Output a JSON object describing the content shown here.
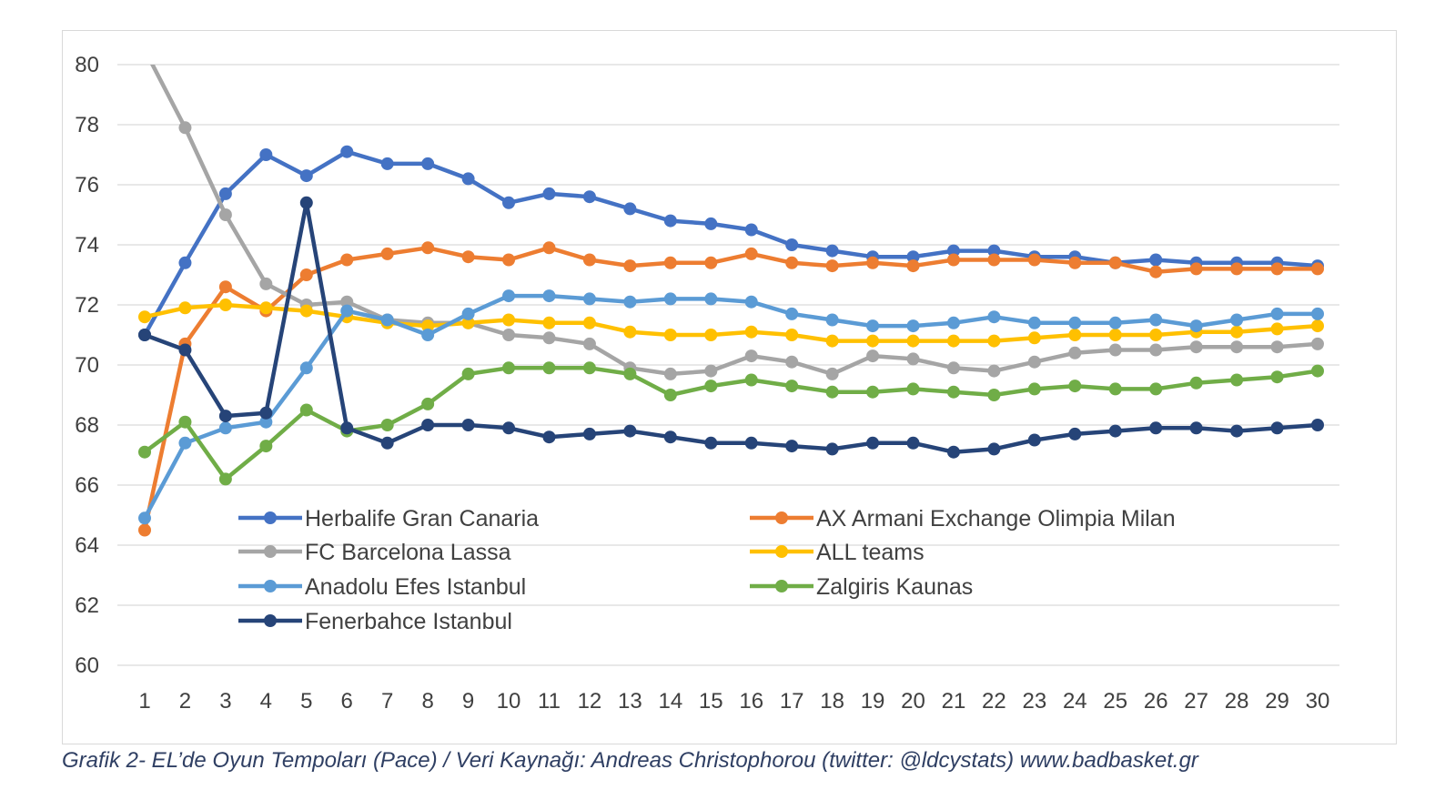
{
  "chart_data": {
    "type": "line",
    "title": "",
    "xlabel": "",
    "ylabel": "",
    "ylim": [
      60,
      80
    ],
    "y_ticks": [
      "60",
      "62",
      "64",
      "66",
      "68",
      "70",
      "72",
      "74",
      "76",
      "78",
      "80"
    ],
    "x": [
      "1",
      "2",
      "3",
      "4",
      "5",
      "6",
      "7",
      "8",
      "9",
      "10",
      "11",
      "12",
      "13",
      "14",
      "15",
      "16",
      "17",
      "18",
      "19",
      "20",
      "21",
      "22",
      "23",
      "24",
      "25",
      "26",
      "27",
      "28",
      "29",
      "30"
    ],
    "grid": "horizontal",
    "legend": "inside-bottom-left",
    "series": [
      {
        "name": "Herbalife Gran Canaria",
        "color": "#4472c4",
        "values": [
          71.0,
          73.4,
          75.7,
          77.0,
          76.3,
          77.1,
          76.7,
          76.7,
          76.2,
          75.4,
          75.7,
          75.6,
          75.2,
          74.8,
          74.7,
          74.5,
          74.0,
          73.8,
          73.6,
          73.6,
          73.8,
          73.8,
          73.6,
          73.6,
          73.4,
          73.5,
          73.4,
          73.4,
          73.4,
          73.3
        ]
      },
      {
        "name": "AX Armani Exchange Olimpia Milan",
        "color": "#ed7d31",
        "values": [
          64.5,
          70.7,
          72.6,
          71.8,
          73.0,
          73.5,
          73.7,
          73.9,
          73.6,
          73.5,
          73.9,
          73.5,
          73.3,
          73.4,
          73.4,
          73.7,
          73.4,
          73.3,
          73.4,
          73.3,
          73.5,
          73.5,
          73.5,
          73.4,
          73.4,
          73.1,
          73.2,
          73.2,
          73.2,
          73.2
        ]
      },
      {
        "name": "FC Barcelona Lassa",
        "color": "#a5a5a5",
        "values": [
          80.5,
          77.9,
          75.0,
          72.7,
          72.0,
          72.1,
          71.5,
          71.4,
          71.4,
          71.0,
          70.9,
          70.7,
          69.9,
          69.7,
          69.8,
          70.3,
          70.1,
          69.7,
          70.3,
          70.2,
          69.9,
          69.8,
          70.1,
          70.4,
          70.5,
          70.5,
          70.6,
          70.6,
          70.6,
          70.7
        ]
      },
      {
        "name": "ALL teams",
        "color": "#ffc000",
        "values": [
          71.6,
          71.9,
          72.0,
          71.9,
          71.8,
          71.6,
          71.4,
          71.3,
          71.4,
          71.5,
          71.4,
          71.4,
          71.1,
          71.0,
          71.0,
          71.1,
          71.0,
          70.8,
          70.8,
          70.8,
          70.8,
          70.8,
          70.9,
          71.0,
          71.0,
          71.0,
          71.1,
          71.1,
          71.2,
          71.3
        ]
      },
      {
        "name": "Anadolu Efes Istanbul",
        "color": "#5b9bd5",
        "values": [
          64.9,
          67.4,
          67.9,
          68.1,
          69.9,
          71.8,
          71.5,
          71.0,
          71.7,
          72.3,
          72.3,
          72.2,
          72.1,
          72.2,
          72.2,
          72.1,
          71.7,
          71.5,
          71.3,
          71.3,
          71.4,
          71.6,
          71.4,
          71.4,
          71.4,
          71.5,
          71.3,
          71.5,
          71.7,
          71.7
        ]
      },
      {
        "name": "Zalgiris Kaunas",
        "color": "#70ad47",
        "values": [
          67.1,
          68.1,
          66.2,
          67.3,
          68.5,
          67.8,
          68.0,
          68.7,
          69.7,
          69.9,
          69.9,
          69.9,
          69.7,
          69.0,
          69.3,
          69.5,
          69.3,
          69.1,
          69.1,
          69.2,
          69.1,
          69.0,
          69.2,
          69.3,
          69.2,
          69.2,
          69.4,
          69.5,
          69.6,
          69.8
        ]
      },
      {
        "name": "Fenerbahce Istanbul",
        "color": "#264478",
        "values": [
          71.0,
          70.5,
          68.3,
          68.4,
          75.4,
          67.9,
          67.4,
          68.0,
          68.0,
          67.9,
          67.6,
          67.7,
          67.8,
          67.6,
          67.4,
          67.4,
          67.3,
          67.2,
          67.4,
          67.4,
          67.1,
          67.2,
          67.5,
          67.7,
          67.8,
          67.9,
          67.9,
          67.8,
          67.9,
          68.0
        ]
      }
    ]
  },
  "caption": {
    "text": "Grafik 2- EL’de Oyun Tempoları (Pace) / Veri Kaynağı: Andreas Christophorou (twitter: @ldcystats)  www.badbasket.gr"
  }
}
